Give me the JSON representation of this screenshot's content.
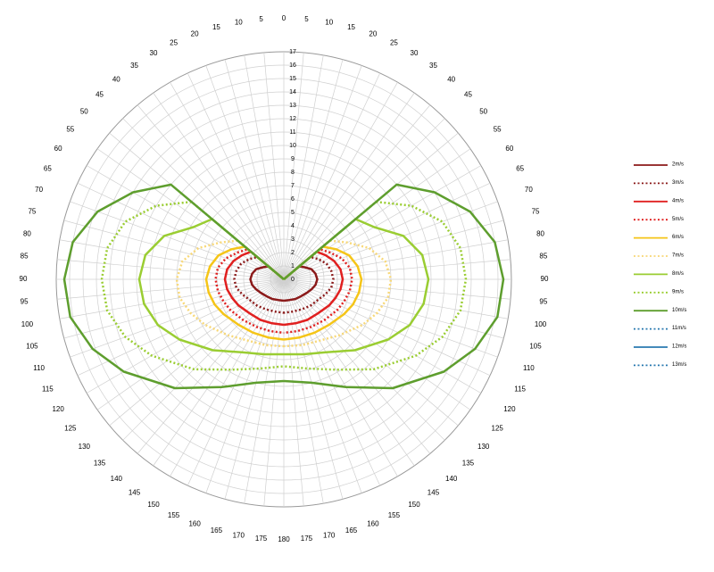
{
  "chart_data": {
    "type": "polar",
    "theta": [
      0,
      50,
      60,
      70,
      80,
      90,
      100,
      110,
      120,
      135,
      150,
      165,
      180
    ],
    "rlim": [
      0,
      17
    ],
    "rticks": [
      0,
      1,
      2,
      3,
      4,
      5,
      6,
      7,
      8,
      9,
      10,
      11,
      12,
      13,
      14,
      15,
      16,
      17
    ],
    "thetaticks": [
      0,
      5,
      10,
      15,
      20,
      25,
      30,
      35,
      40,
      45,
      50,
      55,
      60,
      65,
      70,
      75,
      80,
      85,
      90,
      95,
      100,
      105,
      110,
      115,
      120,
      125,
      130,
      135,
      140,
      145,
      150,
      155,
      160,
      165,
      170,
      175,
      180
    ],
    "mirrored": true,
    "grid": true,
    "legend": "right",
    "series": [
      {
        "name": "2m/s",
        "color": "#8b1a1a",
        "style": "solid",
        "values": [
          0,
          1.5,
          1.8,
          2.2,
          2.4,
          2.5,
          2.4,
          2.2,
          2.0,
          1.8,
          1.7,
          1.6,
          1.6
        ]
      },
      {
        "name": "3m/s",
        "color": "#8b1a1a",
        "style": "dotted",
        "values": [
          0,
          2.6,
          3.0,
          3.4,
          3.6,
          3.7,
          3.6,
          3.3,
          3.0,
          2.8,
          2.6,
          2.5,
          2.5
        ]
      },
      {
        "name": "4m/s",
        "color": "#e02020",
        "style": "solid",
        "values": [
          0,
          3.2,
          3.6,
          4.0,
          4.3,
          4.4,
          4.3,
          4.1,
          3.9,
          3.6,
          3.5,
          3.4,
          3.4
        ]
      },
      {
        "name": "5m/s",
        "color": "#e02020",
        "style": "dotted",
        "values": [
          0,
          3.5,
          4.0,
          4.6,
          5.0,
          5.1,
          5.0,
          4.8,
          4.6,
          4.3,
          4.1,
          4.0,
          4.0
        ]
      },
      {
        "name": "6m/s",
        "color": "#f5c518",
        "style": "solid",
        "values": [
          0,
          3.8,
          4.5,
          5.2,
          5.6,
          5.8,
          5.7,
          5.5,
          5.2,
          4.8,
          4.6,
          4.5,
          4.5
        ]
      },
      {
        "name": "7m/s",
        "color": "#f8d878",
        "style": "dotted",
        "values": [
          0,
          4.5,
          5.5,
          6.8,
          7.7,
          8.0,
          7.9,
          7.4,
          6.8,
          5.9,
          5.3,
          5.1,
          5.0
        ]
      },
      {
        "name": "8m/s",
        "color": "#9acd32",
        "style": "solid",
        "values": [
          0,
          7.0,
          7.8,
          9.5,
          10.5,
          10.8,
          10.6,
          10.0,
          9.0,
          7.5,
          6.3,
          5.8,
          5.6
        ]
      },
      {
        "name": "9m/s",
        "color": "#9acd32",
        "style": "dotted",
        "values": [
          0,
          9.0,
          11.0,
          12.6,
          13.4,
          13.6,
          13.4,
          12.6,
          11.4,
          9.5,
          7.8,
          6.9,
          6.5
        ]
      },
      {
        "name": "10m/s",
        "color": "#5e9e2e",
        "style": "solid",
        "values": [
          0,
          11.0,
          13.0,
          14.8,
          16.0,
          16.4,
          16.2,
          15.2,
          13.8,
          11.5,
          9.3,
          8.0,
          7.6
        ]
      },
      {
        "name": "11m/s",
        "color": "#2a7ab0",
        "style": "dotted",
        "values": [
          null,
          null,
          null,
          null,
          null,
          null,
          null,
          null,
          null,
          null,
          null,
          null,
          null
        ]
      },
      {
        "name": "12m/s",
        "color": "#2a7ab0",
        "style": "solid",
        "values": [
          null,
          null,
          null,
          null,
          null,
          null,
          null,
          null,
          null,
          null,
          null,
          null,
          null
        ]
      },
      {
        "name": "13m/s",
        "color": "#2a7ab0",
        "style": "dotted",
        "values": [
          null,
          null,
          null,
          null,
          null,
          null,
          null,
          null,
          null,
          null,
          null,
          null,
          null
        ]
      }
    ]
  }
}
